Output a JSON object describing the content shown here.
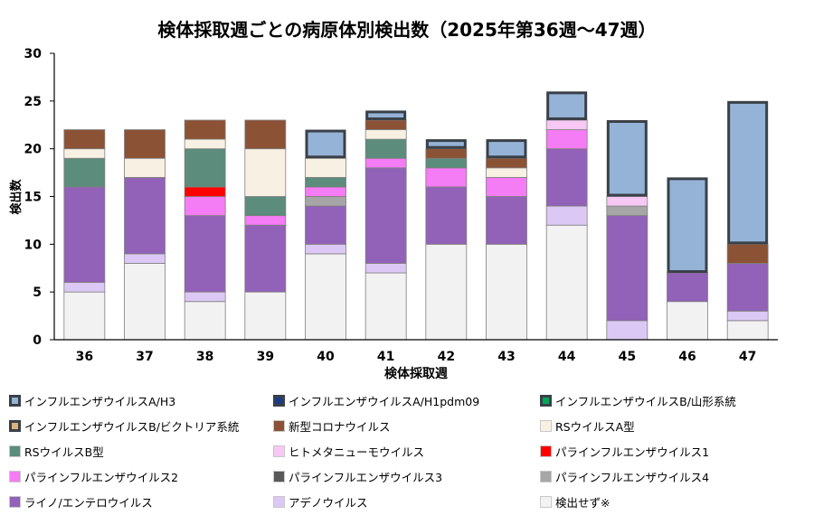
{
  "chart_data": {
    "type": "bar",
    "stacked": true,
    "title": "検体採取週ごとの病原体別検出数（2025年第36週～47週）",
    "xlabel": "検体採取週",
    "ylabel": "検出数",
    "ylim": [
      0,
      30
    ],
    "yticks": [
      0,
      5,
      10,
      15,
      20,
      25,
      30
    ],
    "categories": [
      "36",
      "37",
      "38",
      "39",
      "40",
      "41",
      "42",
      "43",
      "44",
      "45",
      "46",
      "47"
    ],
    "series": [
      {
        "name": "検出せず※",
        "color": "#f2f2f2",
        "values": [
          5,
          8,
          4,
          5,
          9,
          7,
          10,
          10,
          12,
          0,
          4,
          2
        ]
      },
      {
        "name": "アデノウイルス",
        "color": "#dcc8f4",
        "values": [
          1,
          1,
          1,
          0,
          1,
          1,
          0,
          0,
          2,
          2,
          0,
          1
        ]
      },
      {
        "name": "ライノ/エンテロウイルス",
        "color": "#9261b8",
        "values": [
          10,
          8,
          8,
          7,
          4,
          10,
          6,
          5,
          6,
          11,
          3,
          5
        ]
      },
      {
        "name": "パラインフルエンザウイルス4",
        "color": "#a6a6a6",
        "values": [
          0,
          0,
          0,
          0,
          1,
          0,
          0,
          0,
          0,
          1,
          0,
          0
        ]
      },
      {
        "name": "パラインフルエンザウイルス3",
        "color": "#595959",
        "values": [
          0,
          0,
          0,
          0,
          0,
          0,
          0,
          0,
          0,
          0,
          0,
          0
        ]
      },
      {
        "name": "パラインフルエンザウイルス2",
        "color": "#f47cf4",
        "values": [
          0,
          0,
          2,
          1,
          1,
          1,
          2,
          2,
          2,
          0,
          0,
          0
        ]
      },
      {
        "name": "パラインフルエンザウイルス1",
        "color": "#ff0000",
        "values": [
          0,
          0,
          1,
          0,
          0,
          0,
          0,
          0,
          0,
          0,
          0,
          0
        ]
      },
      {
        "name": "ヒトメタニューモウイルス",
        "color": "#f7c8f4",
        "values": [
          0,
          0,
          0,
          0,
          0,
          0,
          0,
          0,
          1,
          1,
          0,
          0
        ]
      },
      {
        "name": "RSウイルスB型",
        "color": "#5b8c7c",
        "values": [
          3,
          0,
          4,
          2,
          1,
          2,
          1,
          0,
          0,
          0,
          0,
          0
        ]
      },
      {
        "name": "RSウイルスA型",
        "color": "#f8f1e3",
        "values": [
          1,
          2,
          1,
          5,
          2,
          1,
          0,
          1,
          0,
          0,
          0,
          0
        ]
      },
      {
        "name": "新型コロナウイルス",
        "color": "#8b5235",
        "values": [
          2,
          3,
          2,
          3,
          0,
          1,
          1,
          1,
          0,
          0,
          0,
          2
        ]
      },
      {
        "name": "インフルエンザウイルスB/ビクトリア系統",
        "color": "#d7b47c",
        "values": [
          0,
          0,
          0,
          0,
          0,
          0,
          0,
          0,
          0,
          0,
          0,
          0
        ]
      },
      {
        "name": "インフルエンザウイルスB/山形系統",
        "color": "#00a65a",
        "values": [
          0,
          0,
          0,
          0,
          0,
          0,
          0,
          0,
          0,
          0,
          0,
          0
        ]
      },
      {
        "name": "インフルエンザウイルスA/H1pdm09",
        "color": "#173b8f",
        "values": [
          0,
          0,
          0,
          0,
          0,
          0,
          0,
          0,
          0,
          0,
          0,
          0
        ]
      },
      {
        "name": "インフルエンザウイルスA/H3",
        "color": "#95b3d7",
        "values": [
          0,
          0,
          0,
          0,
          3,
          1,
          1,
          2,
          3,
          8,
          10,
          15
        ]
      }
    ],
    "legend": {
      "position": "bottom",
      "columns": 3,
      "items": [
        {
          "name": "インフルエンザウイルスA/H3",
          "color": "#95b3d7",
          "boxed": true
        },
        {
          "name": "インフルエンザウイルスA/H1pdm09",
          "color": "#173b8f",
          "boxed": true
        },
        {
          "name": "インフルエンザウイルスB/山形系統",
          "color": "#00a65a",
          "boxed": true
        },
        {
          "name": "インフルエンザウイルスB/ビクトリア系統",
          "color": "#d7b47c",
          "boxed": true
        },
        {
          "name": "新型コロナウイルス",
          "color": "#8b5235",
          "boxed": false
        },
        {
          "name": "RSウイルスA型",
          "color": "#f8f1e3",
          "boxed": false
        },
        {
          "name": "RSウイルスB型",
          "color": "#5b8c7c",
          "boxed": false
        },
        {
          "name": "ヒトメタニューモウイルス",
          "color": "#f7c8f4",
          "boxed": false
        },
        {
          "name": "パラインフルエンザウイルス1",
          "color": "#ff0000",
          "boxed": false
        },
        {
          "name": "パラインフルエンザウイルス2",
          "color": "#f47cf4",
          "boxed": false
        },
        {
          "name": "パラインフルエンザウイルス3",
          "color": "#595959",
          "boxed": false
        },
        {
          "name": "パラインフルエンザウイルス4",
          "color": "#a6a6a6",
          "boxed": false
        },
        {
          "name": "ライノ/エンテロウイルス",
          "color": "#9261b8",
          "boxed": false
        },
        {
          "name": "アデノウイルス",
          "color": "#dcc8f4",
          "boxed": false
        },
        {
          "name": "検出せず※",
          "color": "#f2f2f2",
          "boxed": false
        }
      ]
    }
  }
}
